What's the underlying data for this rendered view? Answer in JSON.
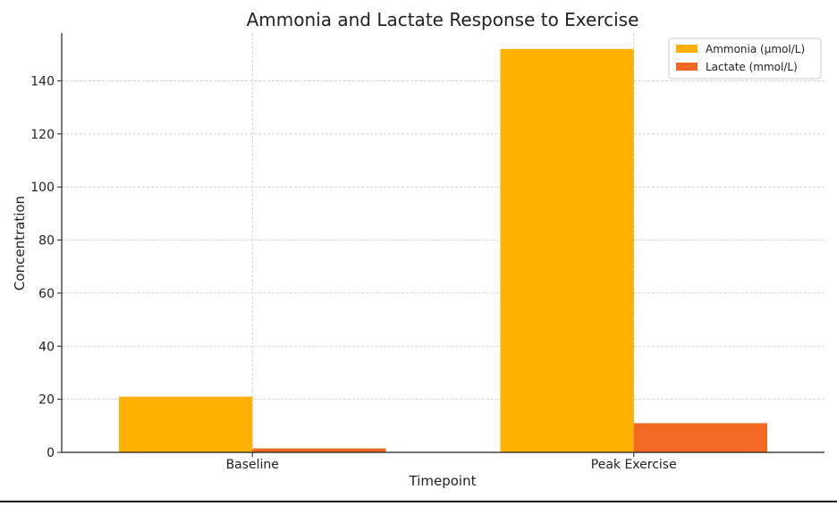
{
  "chart_data": {
    "type": "bar",
    "title": "Ammonia and Lactate Response to Exercise",
    "xlabel": "Timepoint",
    "ylabel": "Concentration",
    "categories": [
      "Baseline",
      "Peak Exercise"
    ],
    "series": [
      {
        "name": "Ammonia (µmol/L)",
        "values": [
          21,
          152
        ],
        "color": "#FFB000"
      },
      {
        "name": "Lactate (mmol/L)",
        "values": [
          1.5,
          11
        ],
        "color": "#F26A21"
      }
    ],
    "ylim": [
      0,
      158
    ],
    "yticks": [
      0,
      20,
      40,
      60,
      80,
      100,
      120,
      140
    ],
    "grid": true,
    "legend": "top-right"
  }
}
